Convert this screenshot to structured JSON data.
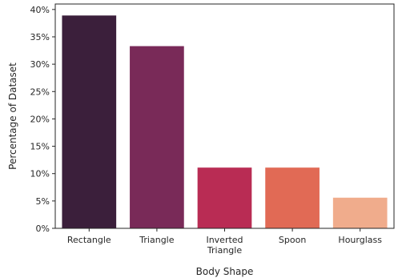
{
  "chart_data": {
    "type": "bar",
    "title": "",
    "xlabel": "Body Shape",
    "ylabel": "Percentage of Dataset",
    "categories": [
      [
        "Rectangle"
      ],
      [
        "Triangle"
      ],
      [
        "Inverted",
        "Triangle"
      ],
      [
        "Spoon"
      ],
      [
        "Hourglass"
      ]
    ],
    "values": [
      38.9,
      33.3,
      11.1,
      11.1,
      5.6
    ],
    "colors": [
      "#3b1f3b",
      "#792a58",
      "#b92c54",
      "#e16a55",
      "#f0ac8c"
    ],
    "ylim": [
      0,
      41
    ],
    "yticks": [
      0,
      5,
      10,
      15,
      20,
      25,
      30,
      35,
      40
    ],
    "ytick_format": "percent",
    "grid": false,
    "legend": "none"
  }
}
